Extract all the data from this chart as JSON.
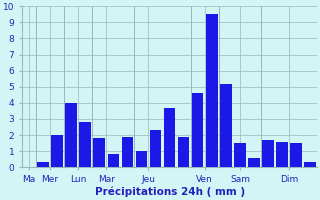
{
  "bars": [
    {
      "x": 0,
      "height": 0.0
    },
    {
      "x": 1,
      "height": 0.35
    },
    {
      "x": 2,
      "height": 2.0
    },
    {
      "x": 3,
      "height": 4.0
    },
    {
      "x": 4,
      "height": 2.8
    },
    {
      "x": 5,
      "height": 1.85
    },
    {
      "x": 6,
      "height": 0.85
    },
    {
      "x": 7,
      "height": 1.9
    },
    {
      "x": 8,
      "height": 1.0
    },
    {
      "x": 9,
      "height": 2.3
    },
    {
      "x": 10,
      "height": 3.7
    },
    {
      "x": 11,
      "height": 1.9
    },
    {
      "x": 12,
      "height": 4.6
    },
    {
      "x": 13,
      "height": 9.5
    },
    {
      "x": 14,
      "height": 5.2
    },
    {
      "x": 15,
      "height": 1.5
    },
    {
      "x": 16,
      "height": 0.55
    },
    {
      "x": 17,
      "height": 1.7
    },
    {
      "x": 18,
      "height": 1.6
    },
    {
      "x": 19,
      "height": 1.5
    },
    {
      "x": 20,
      "height": 0.3
    }
  ],
  "day_labels": [
    "Ma",
    "Mer",
    "Lun",
    "Mar",
    "Jeu",
    "Ven",
    "Sam",
    "Dim"
  ],
  "day_tick_positions": [
    0.0,
    1.5,
    3.5,
    5.5,
    8.5,
    12.5,
    15.0,
    18.5
  ],
  "separator_positions": [
    0.5,
    2.5,
    4.5,
    7.5,
    11.5,
    13.5,
    16.5
  ],
  "bar_color": "#1c18e8",
  "background_color": "#d4f5f5",
  "grid_color": "#9ab8b8",
  "xlabel": "Précipitations 24h ( mm )",
  "xlabel_color": "#2222bb",
  "tick_color": "#2222bb",
  "ylim": [
    0,
    10
  ],
  "yticks": [
    0,
    1,
    2,
    3,
    4,
    5,
    6,
    7,
    8,
    9,
    10
  ],
  "xlim": [
    -0.5,
    20.5
  ]
}
